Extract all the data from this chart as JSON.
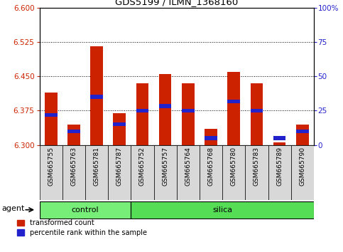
{
  "title": "GDS5199 / ILMN_1368160",
  "samples": [
    "GSM665755",
    "GSM665763",
    "GSM665781",
    "GSM665787",
    "GSM665752",
    "GSM665757",
    "GSM665764",
    "GSM665768",
    "GSM665780",
    "GSM665783",
    "GSM665789",
    "GSM665790"
  ],
  "groups": [
    "control",
    "control",
    "control",
    "control",
    "silica",
    "silica",
    "silica",
    "silica",
    "silica",
    "silica",
    "silica",
    "silica"
  ],
  "red_values": [
    6.415,
    6.345,
    6.515,
    6.37,
    6.435,
    6.455,
    6.435,
    6.335,
    6.46,
    6.435,
    6.305,
    6.345
  ],
  "blue_values": [
    6.365,
    6.33,
    6.405,
    6.345,
    6.375,
    6.385,
    6.375,
    6.315,
    6.395,
    6.375,
    6.315,
    6.33
  ],
  "ylim": [
    6.3,
    6.6
  ],
  "yticks_left": [
    6.3,
    6.375,
    6.45,
    6.525,
    6.6
  ],
  "yticks_right": [
    0,
    25,
    50,
    75,
    100
  ],
  "grid_lines": [
    6.375,
    6.45,
    6.525
  ],
  "bar_width": 0.55,
  "red_color": "#cc2200",
  "blue_color": "#2222cc",
  "control_color": "#77ee77",
  "silica_color": "#55dd55",
  "agent_label": "agent",
  "legend_red": "transformed count",
  "legend_blue": "percentile rank within the sample",
  "group_labels": [
    "control",
    "silica"
  ],
  "n_control": 4,
  "n_silica": 8
}
